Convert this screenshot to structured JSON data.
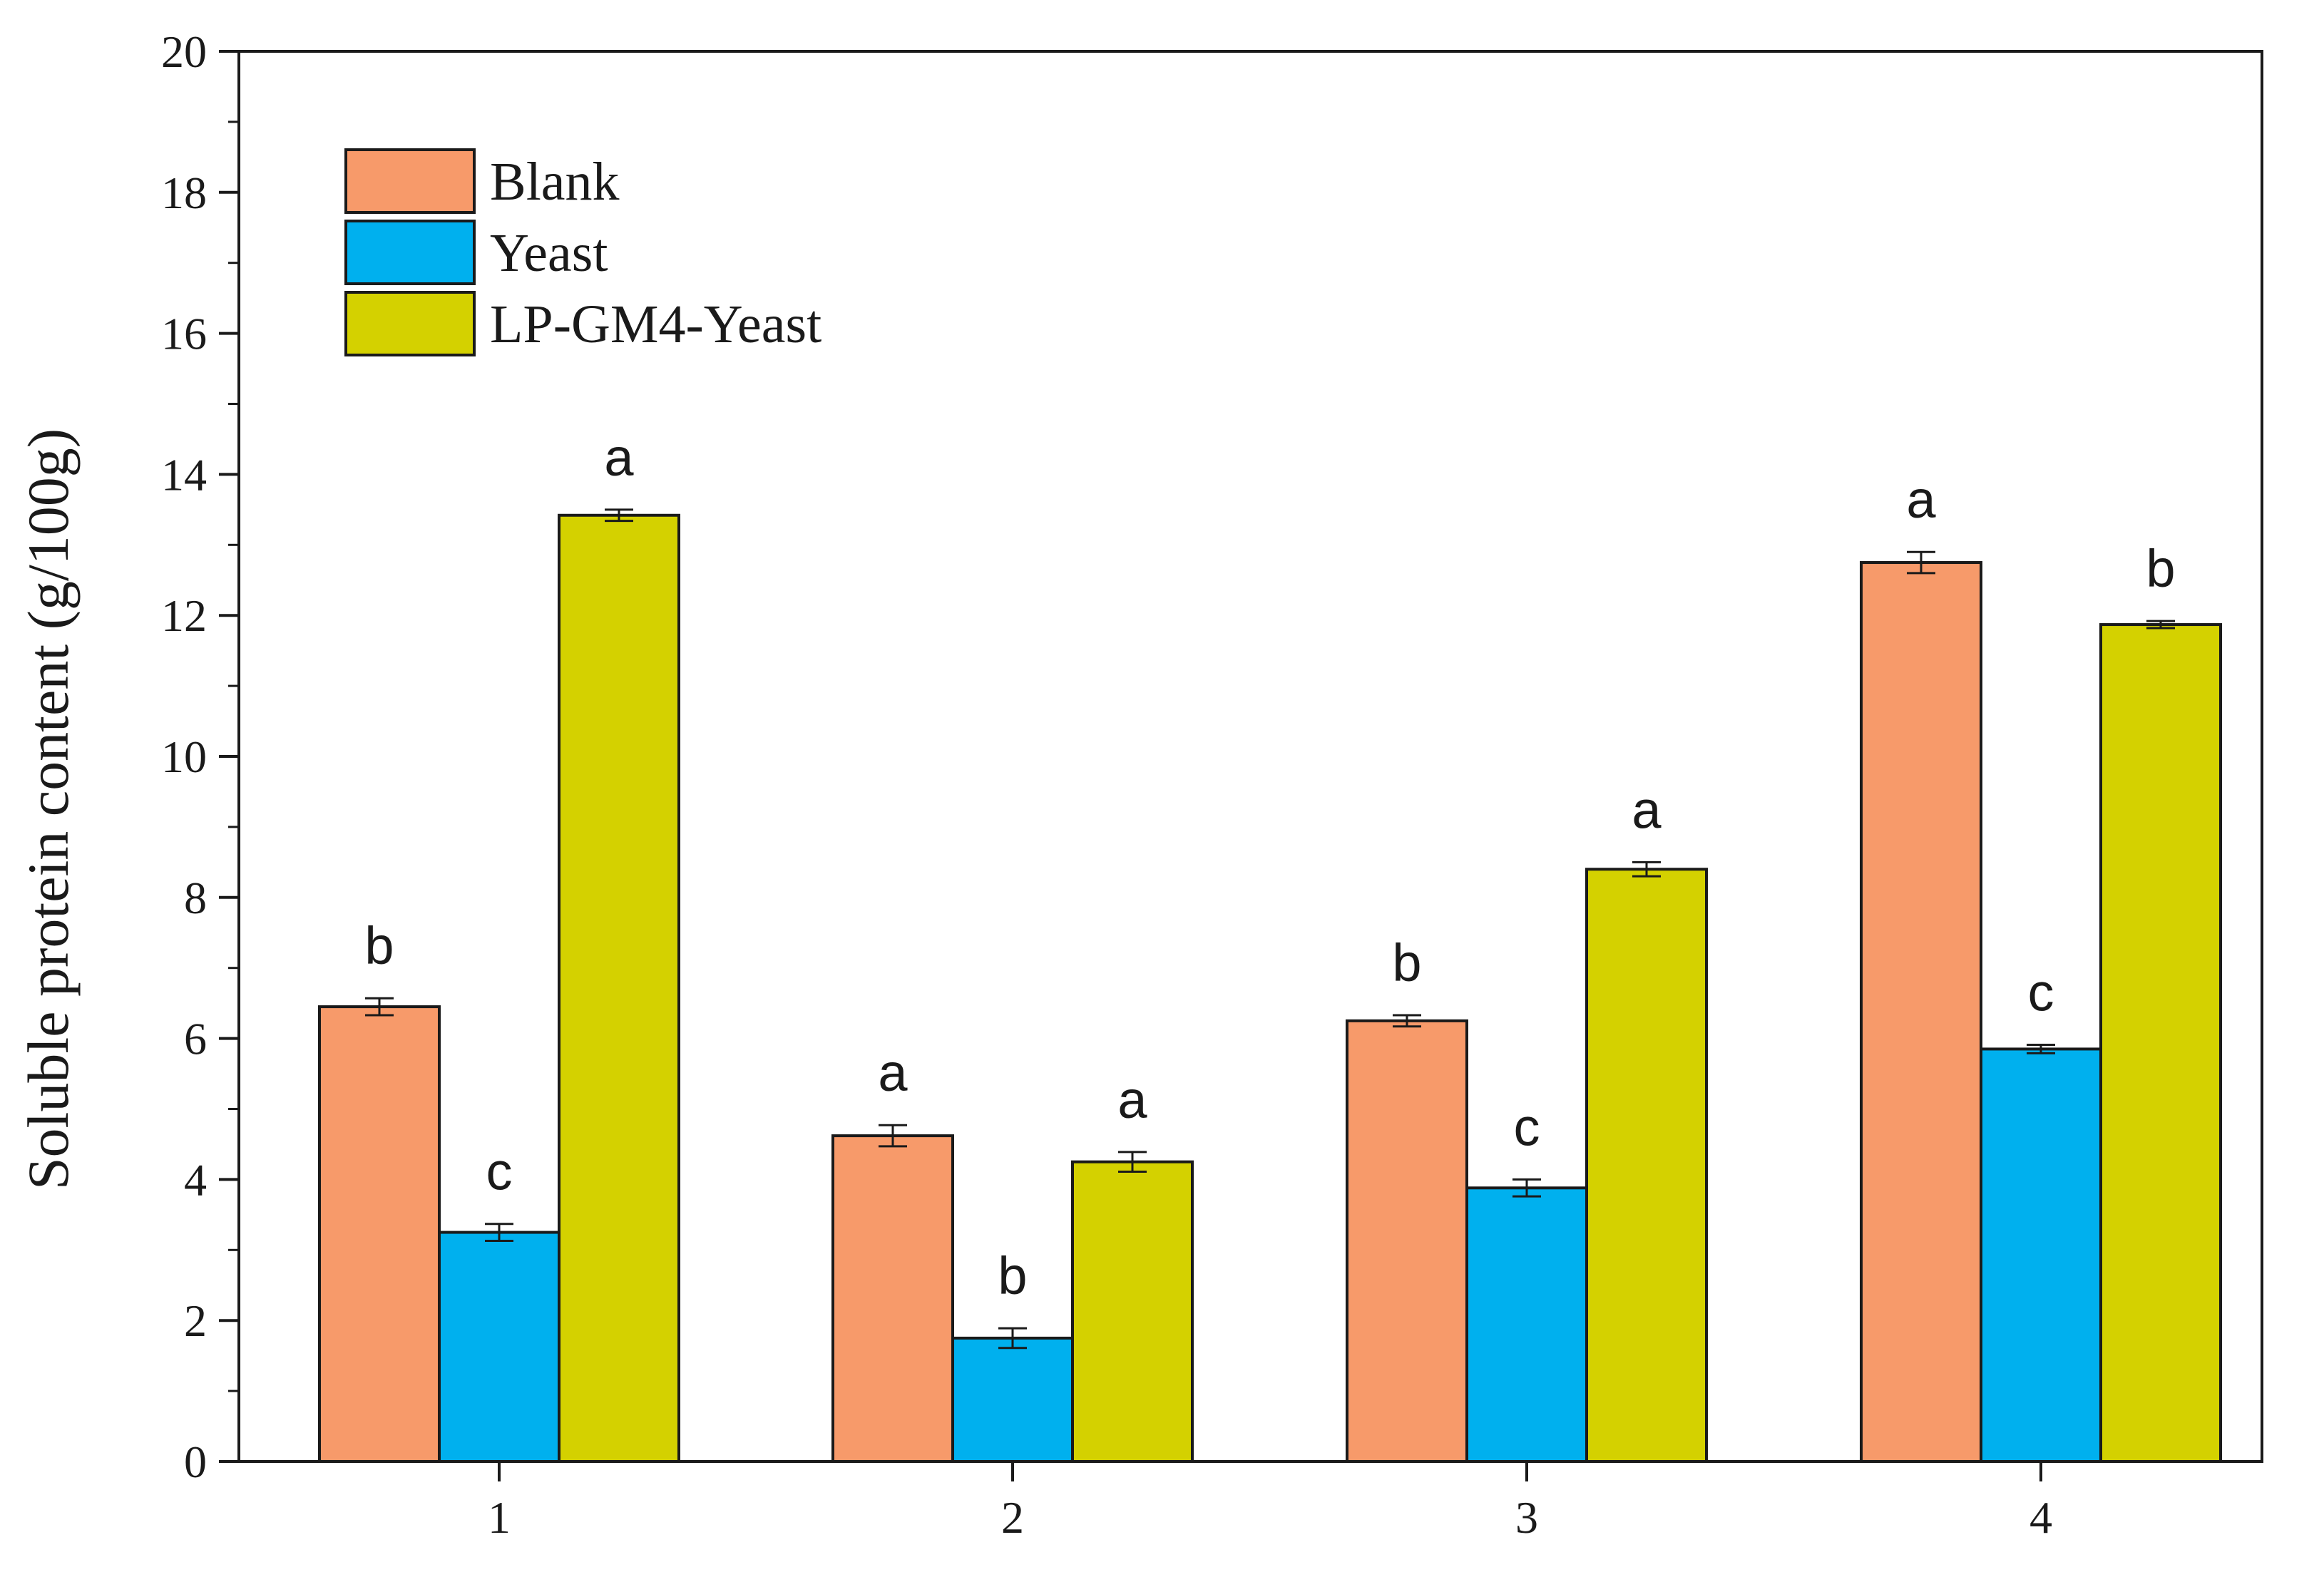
{
  "chart_data": {
    "type": "bar",
    "title": "",
    "xlabel": "",
    "ylabel": "Soluble protein content (g/100g)",
    "ylim": [
      0,
      20
    ],
    "yticks": [
      "0",
      "2",
      "4",
      "6",
      "8",
      "10",
      "12",
      "14",
      "16",
      "18",
      "20"
    ],
    "categories": [
      "1",
      "2",
      "3",
      "4"
    ],
    "grid": false,
    "legend_position": "top-left",
    "series": [
      {
        "name": "Blank",
        "color": "#f79a6a",
        "values": [
          6.45,
          4.62,
          6.25,
          12.75
        ],
        "errors": [
          0.12,
          0.15,
          0.08,
          0.15
        ],
        "letters": [
          "b",
          "a",
          "b",
          "a"
        ]
      },
      {
        "name": "Yeast",
        "color": "#00b0ee",
        "values": [
          3.25,
          1.75,
          3.88,
          5.85
        ],
        "errors": [
          0.12,
          0.14,
          0.12,
          0.06
        ],
        "letters": [
          "c",
          "b",
          "c",
          "c"
        ]
      },
      {
        "name": "LP-GM4-Yeast",
        "color": "#d4d100",
        "values": [
          13.42,
          4.25,
          8.4,
          11.87
        ],
        "errors": [
          0.08,
          0.14,
          0.1,
          0.05
        ],
        "letters": [
          "a",
          "a",
          "a",
          "b"
        ]
      }
    ]
  }
}
